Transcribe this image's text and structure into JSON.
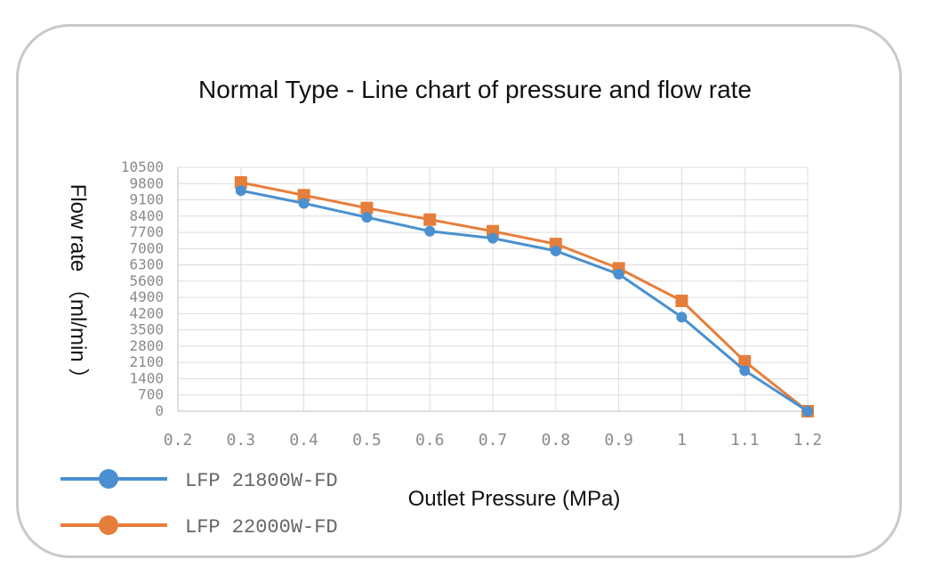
{
  "chart_data": {
    "type": "line",
    "title": "Normal Type - Line chart of pressure and flow rate",
    "xlabel": "Outlet Pressure (MPa)",
    "ylabel": "Flow rate （ml/min ）",
    "x_tick_labels": [
      "0.2",
      "0.3",
      "0.4",
      "0.5",
      "0.6",
      "0.7",
      "0.8",
      "0.9",
      "1",
      "1.1",
      "1.2"
    ],
    "y_tick_labels": [
      "0",
      "700",
      "1400",
      "2100",
      "2800",
      "3500",
      "4200",
      "4900",
      "5600",
      "6300",
      "7000",
      "7700",
      "8400",
      "9100",
      "9800",
      "10500"
    ],
    "xlim": [
      0.2,
      1.2
    ],
    "ylim": [
      0,
      10500
    ],
    "grid": true,
    "legend_position": "bottom-left",
    "series": [
      {
        "name": "LFP 21800W-FD",
        "color": "#4a90d0",
        "marker": "circle",
        "x": [
          0.3,
          0.4,
          0.5,
          0.6,
          0.7,
          0.8,
          0.9,
          1.0,
          1.1,
          1.2
        ],
        "values": [
          9500,
          8950,
          8350,
          7750,
          7450,
          6900,
          5900,
          4050,
          1750,
          0
        ]
      },
      {
        "name": "LFP 22000W-FD",
        "color": "#e67e3b",
        "marker": "square",
        "x": [
          0.3,
          0.4,
          0.5,
          0.6,
          0.7,
          0.8,
          0.9,
          1.0,
          1.1,
          1.2
        ],
        "values": [
          9850,
          9300,
          8750,
          8250,
          7750,
          7200,
          6150,
          4750,
          2150,
          0
        ]
      }
    ]
  }
}
